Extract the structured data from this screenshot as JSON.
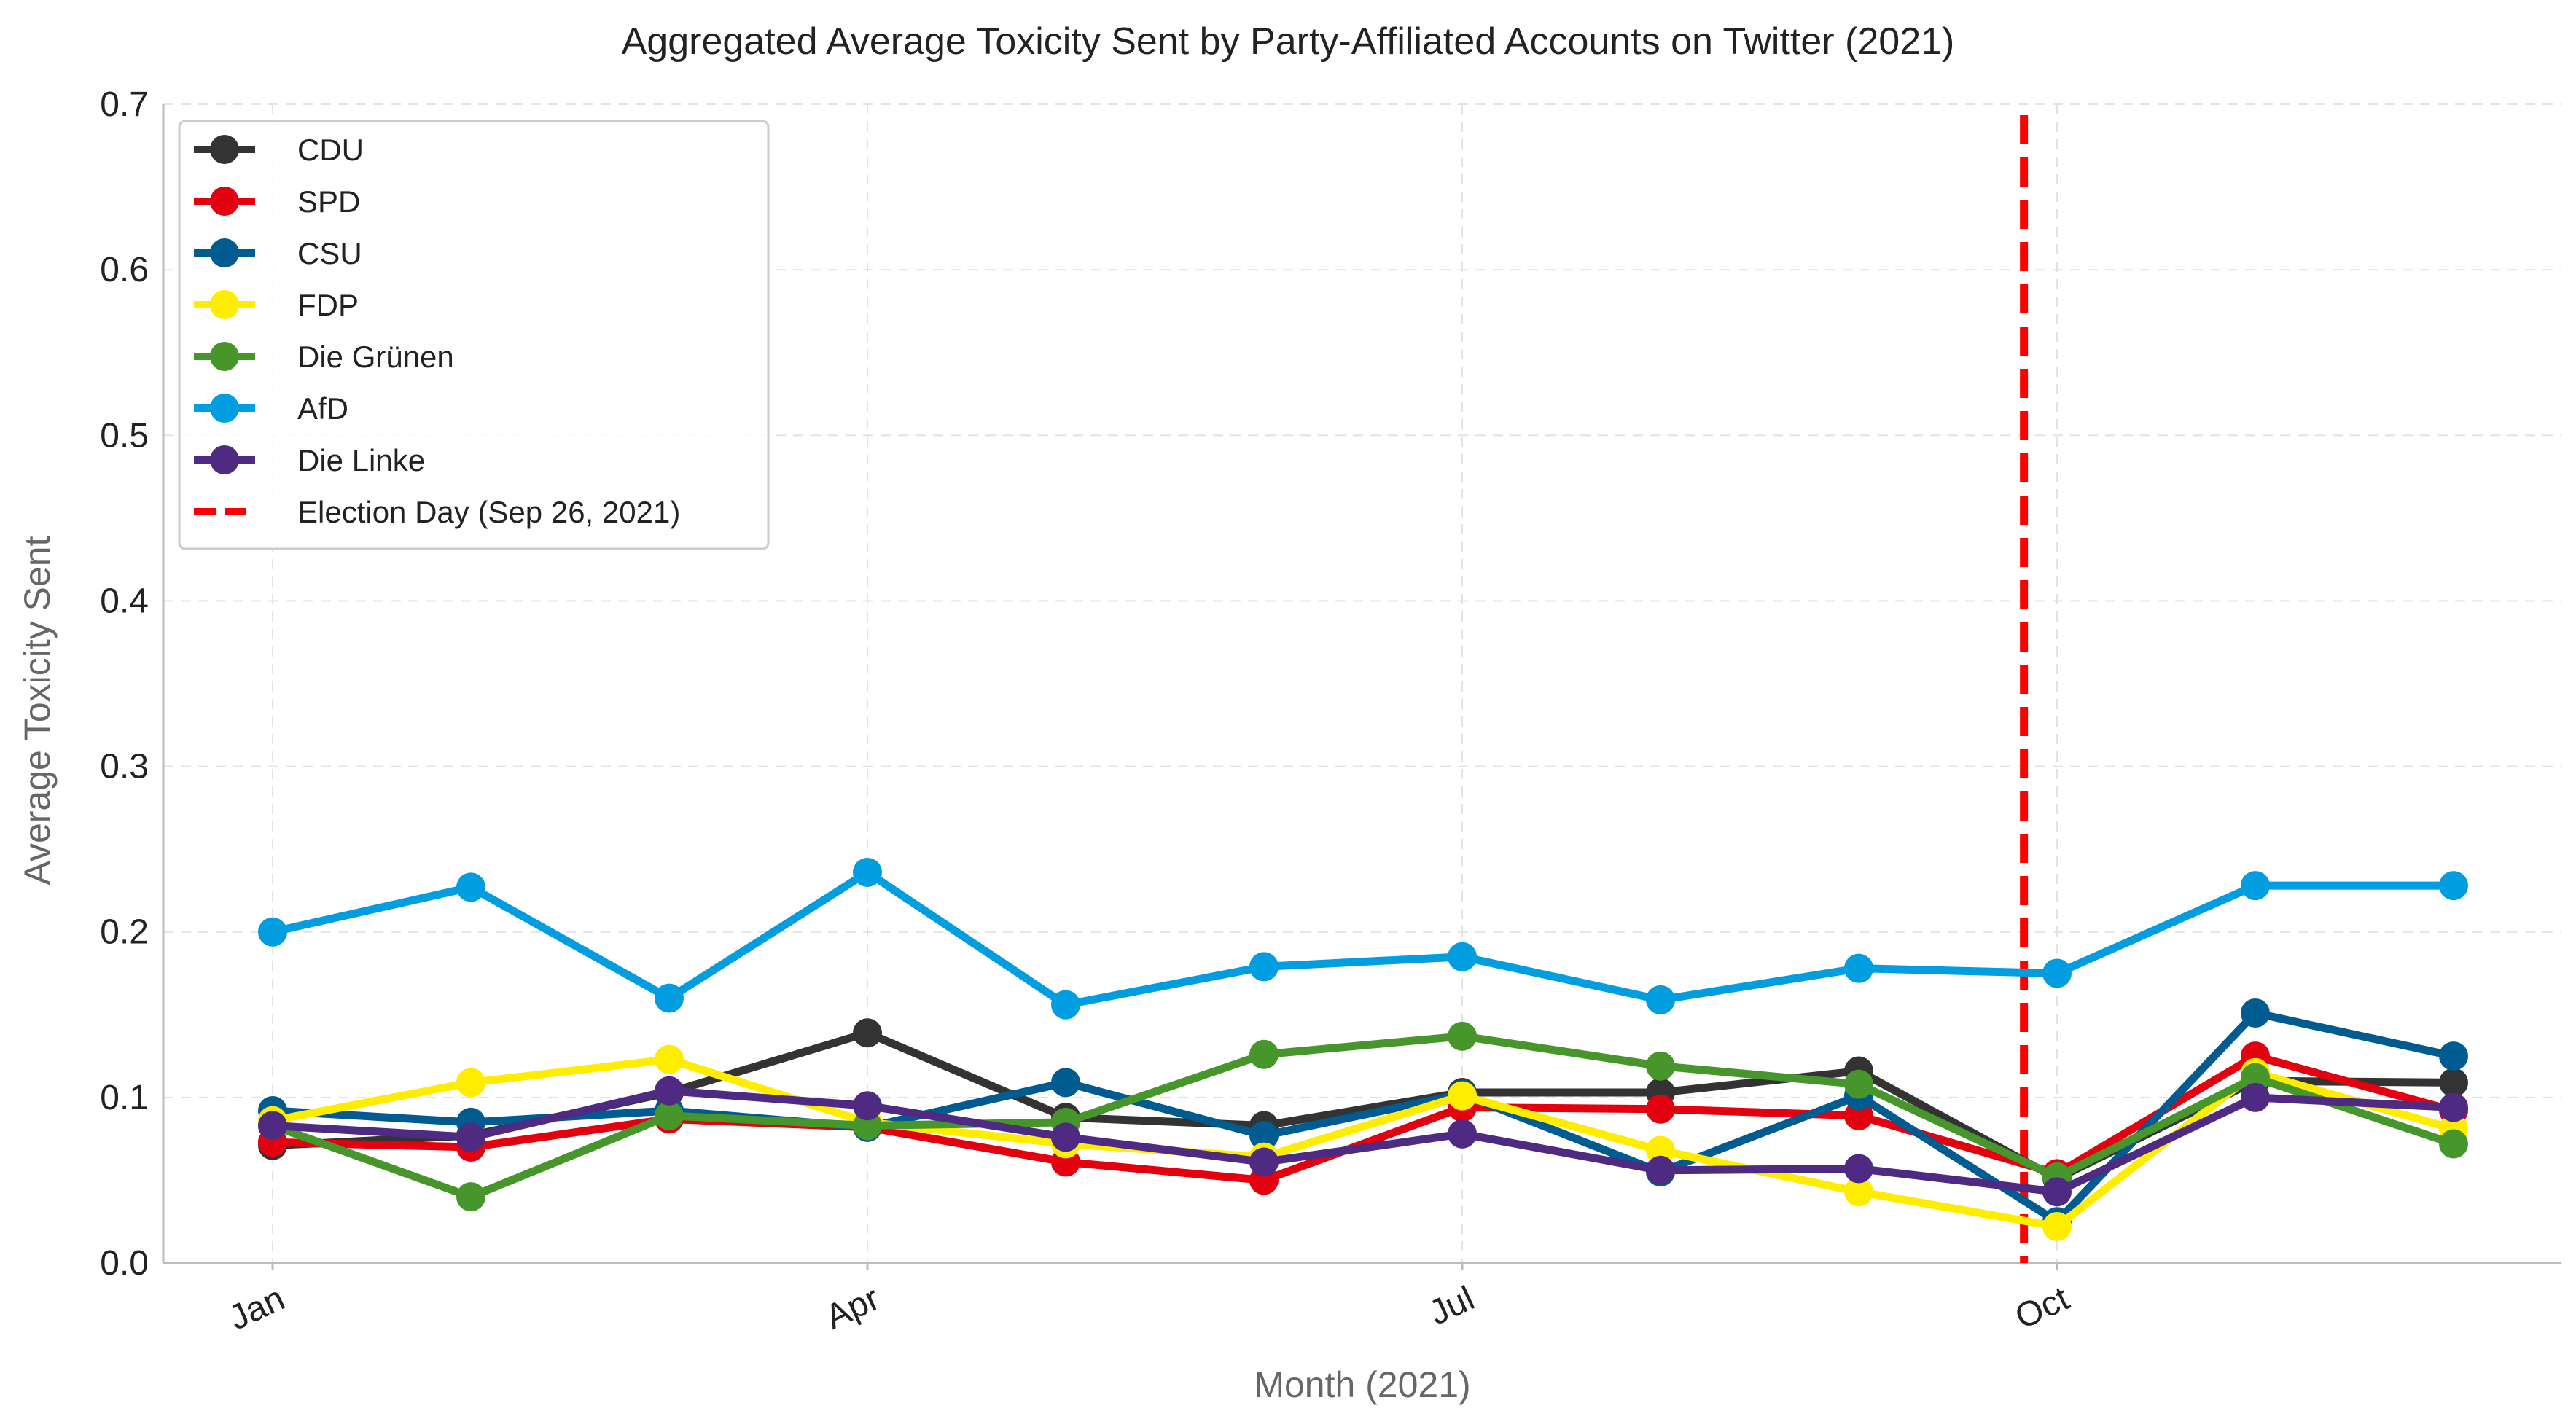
{
  "chart_data": {
    "type": "line",
    "title": "Aggregated Average Toxicity Sent by Party-Affiliated Accounts on Twitter (2021)",
    "xlabel": "Month (2021)",
    "ylabel": "Average Toxicity Sent",
    "ylim": [
      0.0,
      0.7
    ],
    "yticks": [
      "0.0",
      "0.1",
      "0.2",
      "0.3",
      "0.4",
      "0.5",
      "0.6",
      "0.7"
    ],
    "x": [
      "2021-01",
      "2021-02",
      "2021-03",
      "2021-04",
      "2021-05",
      "2021-06",
      "2021-07",
      "2021-08",
      "2021-09",
      "2021-10",
      "2021-11",
      "2021-12"
    ],
    "xticks": [
      {
        "label": "Jan",
        "x": "2021-01"
      },
      {
        "label": "Apr",
        "x": "2021-04"
      },
      {
        "label": "Jul",
        "x": "2021-07"
      },
      {
        "label": "Oct",
        "x": "2021-10"
      }
    ],
    "grid": true,
    "legend_position": "top-left",
    "series": [
      {
        "name": "CDU",
        "color": "#333333",
        "values": [
          0.071,
          0.077,
          0.103,
          0.139,
          0.088,
          0.083,
          0.103,
          0.103,
          0.116,
          0.051,
          0.11,
          0.109
        ]
      },
      {
        "name": "SPD",
        "color": "#e3000f",
        "values": [
          0.073,
          0.07,
          0.087,
          0.082,
          0.061,
          0.05,
          0.094,
          0.093,
          0.089,
          0.054,
          0.125,
          0.092
        ]
      },
      {
        "name": "CSU",
        "color": "#005b91",
        "values": [
          0.092,
          0.085,
          0.092,
          0.082,
          0.109,
          0.077,
          0.102,
          0.055,
          0.101,
          0.025,
          0.151,
          0.125
        ]
      },
      {
        "name": "FDP",
        "color": "#ffed00",
        "values": [
          0.086,
          0.109,
          0.123,
          0.085,
          0.072,
          0.064,
          0.101,
          0.068,
          0.043,
          0.022,
          0.115,
          0.081
        ]
      },
      {
        "name": "Die Grünen",
        "color": "#46962b",
        "values": [
          0.083,
          0.04,
          0.089,
          0.083,
          0.085,
          0.126,
          0.137,
          0.119,
          0.108,
          0.052,
          0.112,
          0.072
        ]
      },
      {
        "name": "AfD",
        "color": "#009ee0",
        "values": [
          0.2,
          0.227,
          0.16,
          0.236,
          0.156,
          0.179,
          0.185,
          0.159,
          0.178,
          0.175,
          0.228,
          0.228
        ]
      },
      {
        "name": "Die Linke",
        "color": "#4f2a82",
        "values": [
          0.083,
          0.076,
          0.104,
          0.095,
          0.076,
          0.061,
          0.078,
          0.056,
          0.057,
          0.043,
          0.1,
          0.094
        ]
      }
    ],
    "annotations": [
      {
        "name": "Election Day (Sep 26, 2021)",
        "type": "vline",
        "x": "2021-09-26",
        "color": "#ff0000",
        "style": "dashed"
      }
    ]
  }
}
